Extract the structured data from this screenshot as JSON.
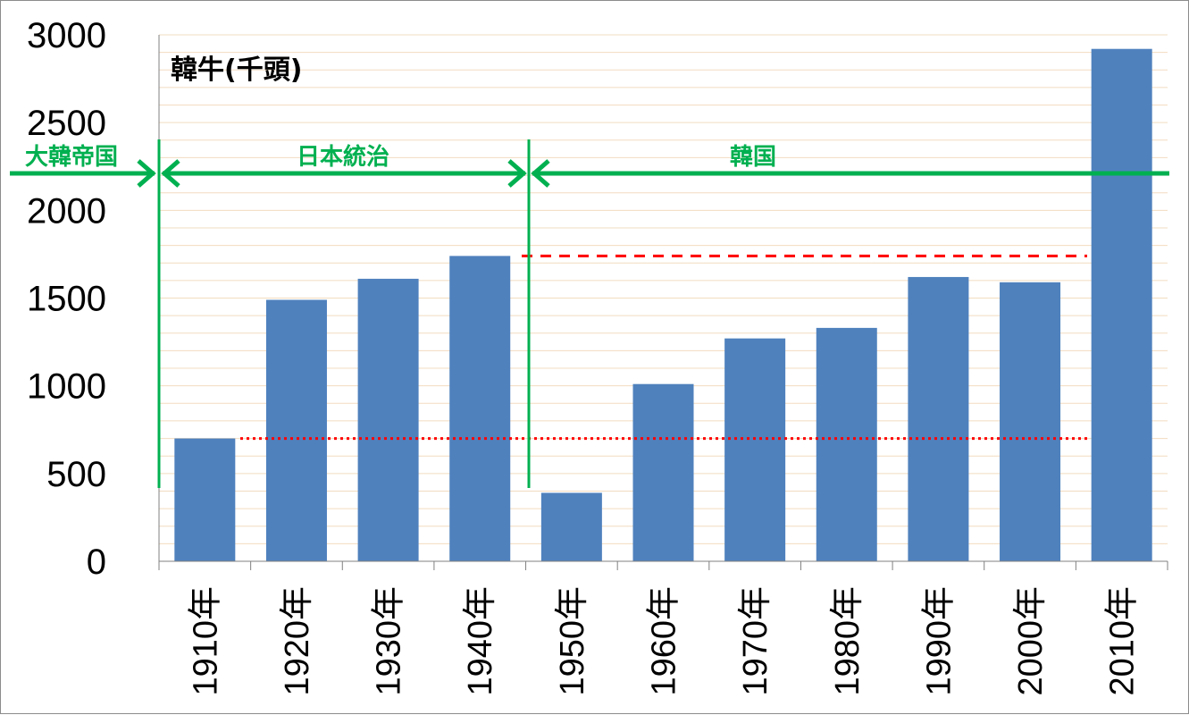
{
  "chart_data": {
    "type": "bar",
    "title": "韓牛(千頭)",
    "categories": [
      "1910年",
      "1920年",
      "1930年",
      "1940年",
      "1950年",
      "1960年",
      "1970年",
      "1980年",
      "1990年",
      "2000年",
      "2010年"
    ],
    "values": [
      700,
      1490,
      1610,
      1740,
      390,
      1010,
      1270,
      1330,
      1620,
      1590,
      2920
    ],
    "ylim": [
      0,
      3000
    ],
    "yticks": [
      "0",
      "500",
      "1000",
      "1500",
      "2000",
      "2500",
      "3000"
    ],
    "grid": true,
    "bar_color": "#4F81BD",
    "eras": [
      {
        "label": "大韓帝国"
      },
      {
        "label": "日本統治"
      },
      {
        "label": "韓国"
      }
    ],
    "era_color": "#00B050",
    "reference_lines": [
      {
        "value": 700,
        "style": "dotted",
        "color": "#FF0000"
      },
      {
        "value": 1740,
        "style": "dashed",
        "color": "#FF0000"
      }
    ]
  }
}
